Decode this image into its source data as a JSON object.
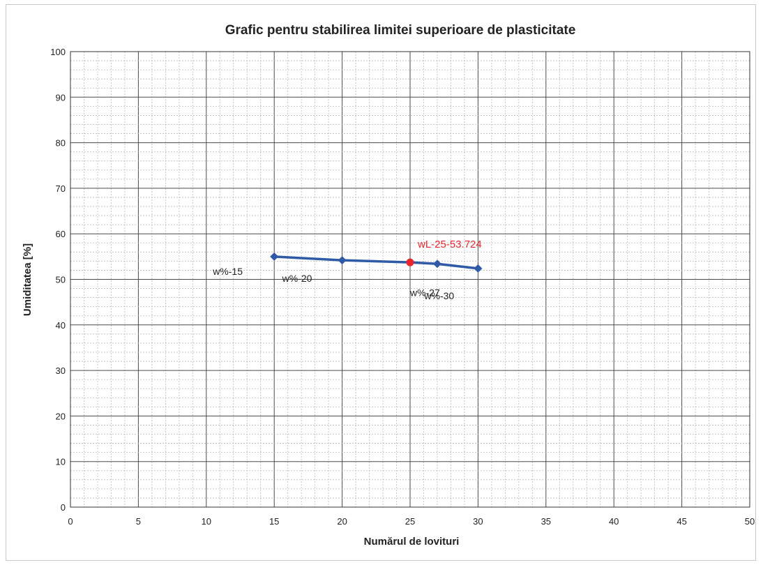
{
  "chart_data": {
    "type": "line",
    "title": "Grafic pentru stabilirea limitei superioare de plasticitate",
    "xlabel": "Numărul de lovituri",
    "ylabel": "Umiditatea [%]",
    "xlim": [
      0,
      50
    ],
    "ylim": [
      0,
      100
    ],
    "x_ticks": [
      0,
      5,
      10,
      15,
      20,
      25,
      30,
      35,
      40,
      45,
      50
    ],
    "y_ticks": [
      0,
      10,
      20,
      30,
      40,
      50,
      60,
      70,
      80,
      90,
      100
    ],
    "grid": true,
    "series": [
      {
        "x": [
          15,
          20,
          25,
          27,
          30
        ],
        "y": [
          55.0,
          54.2,
          53.724,
          53.4,
          52.4
        ],
        "color": "#2f5aa8",
        "marker": "diamond"
      }
    ],
    "point_labels": [
      {
        "x": 15,
        "y": 55.0,
        "text": "w%-15"
      },
      {
        "x": 20,
        "y": 54.2,
        "text": "w%-20"
      },
      {
        "x": 27,
        "y": 53.4,
        "text": "w%-27"
      },
      {
        "x": 30,
        "y": 52.4,
        "text": "w%-30"
      }
    ],
    "highlight": {
      "x": 25,
      "y": 53.724,
      "text": "wL-25-53.724",
      "color": "#e8262b"
    }
  }
}
